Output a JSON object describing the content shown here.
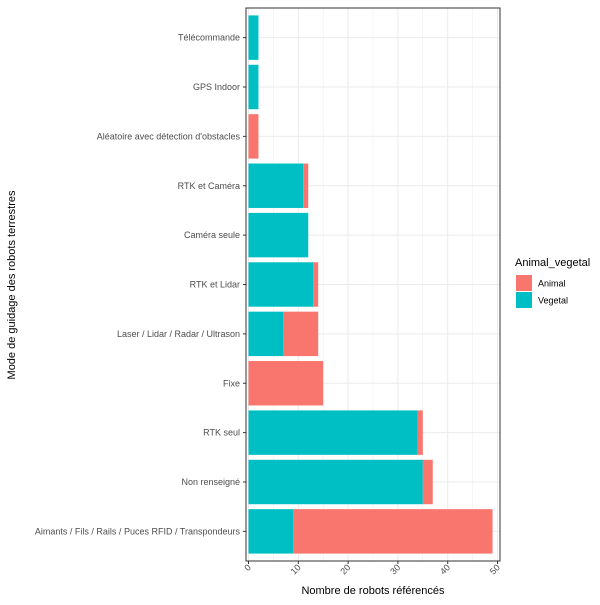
{
  "chart_data": {
    "type": "bar",
    "orientation": "horizontal",
    "stacked": true,
    "xlabel": "Nombre de robots référencés",
    "ylabel": "Mode de guidage des robots terrestres",
    "xlim": [
      -0.5,
      50.5
    ],
    "x_ticks": [
      0,
      10,
      20,
      30,
      40,
      50
    ],
    "x_tick_labels": [
      "0",
      "10",
      "20",
      "30",
      "40",
      "50"
    ],
    "grid": true,
    "categories": [
      "Télécommande",
      "GPS Indoor",
      "Aléatoire avec détection d'obstacles",
      "RTK et Caméra",
      "Caméra seule",
      "RTK et Lidar",
      "Laser / Lidar / Radar / Ultrason",
      "Fixe",
      "RTK seul",
      "Non renseigné",
      "Aimants / Fils / Rails / Puces RFID / Transpondeurs"
    ],
    "series": [
      {
        "name": "Vegetal",
        "color": "#00BFC4",
        "values": [
          2,
          2,
          0,
          11,
          12,
          13,
          7,
          0,
          34,
          35,
          9
        ]
      },
      {
        "name": "Animal",
        "color": "#F8766D",
        "values": [
          0,
          0,
          2,
          1,
          0,
          1,
          7,
          15,
          1,
          2,
          40
        ]
      }
    ],
    "legend": {
      "title": "Animal_vegetal",
      "position": "right",
      "entries": [
        {
          "label": "Animal",
          "color": "#F8766D"
        },
        {
          "label": "Vegetal",
          "color": "#00BFC4"
        }
      ]
    }
  }
}
